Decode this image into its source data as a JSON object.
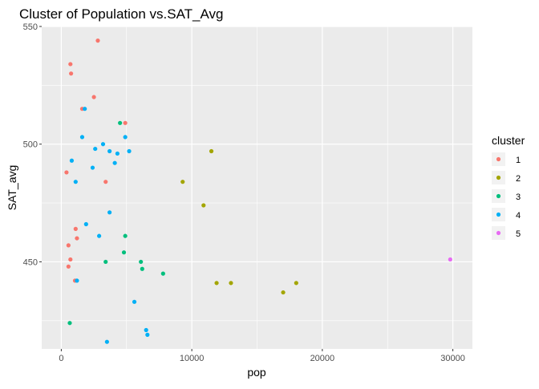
{
  "chart_data": {
    "type": "scatter",
    "title": "Cluster of Population vs.SAT_Avg",
    "xlabel": "pop",
    "ylabel": "SAT_avg",
    "xlim": [
      -1500,
      31500
    ],
    "ylim": [
      413,
      550
    ],
    "x_ticks": [
      0,
      10000,
      20000,
      30000
    ],
    "x_tick_labels": [
      "0",
      "10000",
      "20000",
      "30000"
    ],
    "y_ticks": [
      450,
      500,
      550
    ],
    "y_tick_labels": [
      "450",
      "500",
      "550"
    ],
    "grid": true,
    "legend": {
      "title": "cluster",
      "position": "right",
      "entries": [
        "1",
        "2",
        "3",
        "4",
        "5"
      ]
    },
    "colors": {
      "1": "#F8766D",
      "2": "#A3A500",
      "3": "#00BF7D",
      "4": "#00B0F6",
      "5": "#E76BF3"
    },
    "panel_background": "#EBEBEB",
    "series": [
      {
        "name": "1",
        "points": [
          [
            2800,
            544
          ],
          [
            700,
            534
          ],
          [
            750,
            530
          ],
          [
            2500,
            520
          ],
          [
            1600,
            515
          ],
          [
            4900,
            509
          ],
          [
            400,
            488
          ],
          [
            3400,
            484
          ],
          [
            1100,
            464
          ],
          [
            1200,
            460
          ],
          [
            550,
            457
          ],
          [
            700,
            451
          ],
          [
            550,
            448
          ],
          [
            1050,
            442
          ]
        ]
      },
      {
        "name": "2",
        "points": [
          [
            11500,
            497
          ],
          [
            9300,
            484
          ],
          [
            10900,
            474
          ],
          [
            11900,
            441
          ],
          [
            13000,
            441
          ],
          [
            18000,
            441
          ],
          [
            17000,
            437
          ]
        ]
      },
      {
        "name": "3",
        "points": [
          [
            4500,
            509
          ],
          [
            4900,
            461
          ],
          [
            4800,
            454
          ],
          [
            3400,
            450
          ],
          [
            6100,
            450
          ],
          [
            6200,
            447
          ],
          [
            7800,
            445
          ],
          [
            650,
            424
          ]
        ]
      },
      {
        "name": "4",
        "points": [
          [
            1800,
            515
          ],
          [
            1600,
            503
          ],
          [
            4900,
            503
          ],
          [
            3200,
            500
          ],
          [
            2600,
            498
          ],
          [
            3700,
            497
          ],
          [
            4300,
            496
          ],
          [
            5200,
            497
          ],
          [
            800,
            493
          ],
          [
            4100,
            492
          ],
          [
            2400,
            490
          ],
          [
            1100,
            484
          ],
          [
            3700,
            471
          ],
          [
            1900,
            466
          ],
          [
            2900,
            461
          ],
          [
            1200,
            442
          ],
          [
            5600,
            433
          ],
          [
            6500,
            421
          ],
          [
            6600,
            419
          ],
          [
            3500,
            416
          ]
        ]
      },
      {
        "name": "5",
        "points": [
          [
            29800,
            451
          ]
        ]
      }
    ]
  }
}
